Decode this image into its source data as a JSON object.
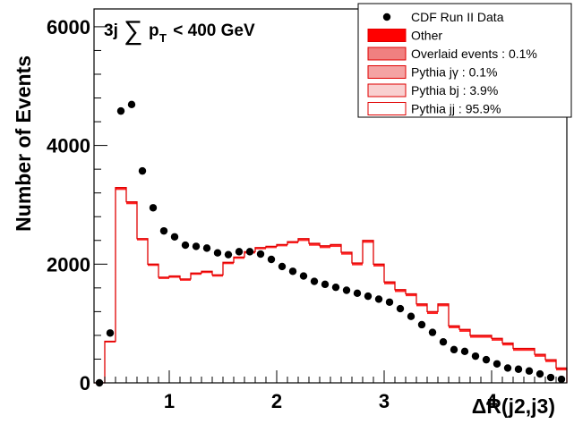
{
  "chart_data": {
    "type": "histogram",
    "annotation": {
      "prefix": "3j",
      "sum_symbol": "∑",
      "var": "p",
      "subscript": "T",
      "suffix": " < 400 GeV"
    },
    "xlabel": "ΔR(j2,j3)",
    "ylabel": "Number of Events",
    "xlim": [
      0.3,
      4.7
    ],
    "ylim": [
      0,
      6300
    ],
    "xticks": [
      1,
      2,
      3,
      4
    ],
    "yticks": [
      0,
      2000,
      4000,
      6000
    ],
    "bin_edges": [
      0.3,
      0.4,
      0.5,
      0.6,
      0.7,
      0.8,
      0.9,
      1.0,
      1.1,
      1.2,
      1.3,
      1.4,
      1.5,
      1.6,
      1.7,
      1.8,
      1.9,
      2.0,
      2.1,
      2.2,
      2.3,
      2.4,
      2.5,
      2.6,
      2.7,
      2.8,
      2.9,
      3.0,
      3.1,
      3.2,
      3.3,
      3.4,
      3.5,
      3.6,
      3.7,
      3.8,
      3.9,
      4.0,
      4.1,
      4.2,
      4.3,
      4.4,
      4.5,
      4.6,
      4.7
    ],
    "stack_total": [
      0,
      700,
      3290,
      3050,
      2430,
      2000,
      1780,
      1800,
      1750,
      1850,
      1880,
      1820,
      2030,
      2120,
      2210,
      2280,
      2300,
      2330,
      2380,
      2430,
      2350,
      2310,
      2330,
      2200,
      2020,
      2400,
      2000,
      1700,
      1570,
      1500,
      1330,
      1200,
      1330,
      960,
      900,
      800,
      800,
      750,
      670,
      580,
      580,
      480,
      390,
      250
    ],
    "stack_other": [
      0,
      680,
      3250,
      3010,
      2400,
      1970,
      1750,
      1770,
      1720,
      1820,
      1850,
      1790,
      2000,
      2090,
      2180,
      2250,
      2270,
      2300,
      2350,
      2390,
      2310,
      2270,
      2290,
      2160,
      1980,
      2360,
      1960,
      1660,
      1530,
      1460,
      1290,
      1160,
      1290,
      920,
      860,
      760,
      760,
      710,
      630,
      540,
      540,
      440,
      350,
      210
    ],
    "data_points": {
      "x": [
        0.35,
        0.45,
        0.55,
        0.65,
        0.75,
        0.85,
        0.95,
        1.05,
        1.15,
        1.25,
        1.35,
        1.45,
        1.55,
        1.65,
        1.75,
        1.85,
        1.95,
        2.05,
        2.15,
        2.25,
        2.35,
        2.45,
        2.55,
        2.65,
        2.75,
        2.85,
        2.95,
        3.05,
        3.15,
        3.25,
        3.35,
        3.45,
        3.55,
        3.65,
        3.75,
        3.85,
        3.95,
        4.05,
        4.15,
        4.25,
        4.35,
        4.45,
        4.55,
        4.65
      ],
      "y": [
        0,
        840,
        4580,
        4690,
        3570,
        2950,
        2560,
        2460,
        2320,
        2300,
        2270,
        2190,
        2160,
        2210,
        2210,
        2170,
        2080,
        1960,
        1880,
        1800,
        1710,
        1660,
        1610,
        1560,
        1510,
        1460,
        1410,
        1360,
        1250,
        1120,
        980,
        850,
        690,
        560,
        530,
        450,
        390,
        320,
        250,
        230,
        200,
        150,
        90,
        60
      ]
    },
    "legend": {
      "position": "top-right",
      "entries": [
        {
          "label": "CDF Run II Data",
          "style": "marker",
          "color": "#000000"
        },
        {
          "label": "Other",
          "style": "fill",
          "color": "#ff0000"
        },
        {
          "label": "Overlaid events : 0.1%",
          "style": "fill",
          "color": "#f08080"
        },
        {
          "label": "Pythia jγ : 0.1%",
          "style": "fill",
          "color": "#f4a3a3"
        },
        {
          "label": "Pythia bj : 3.9%",
          "style": "fill",
          "color": "#f9d0d0"
        },
        {
          "label": "Pythia jj : 95.9%",
          "style": "fill",
          "color": "#ffffff"
        }
      ]
    },
    "colors": {
      "data": "#000000",
      "histogram_line": "#e00000",
      "histogram_fill": "#ffffff",
      "other_fill": "#ff0000"
    }
  }
}
